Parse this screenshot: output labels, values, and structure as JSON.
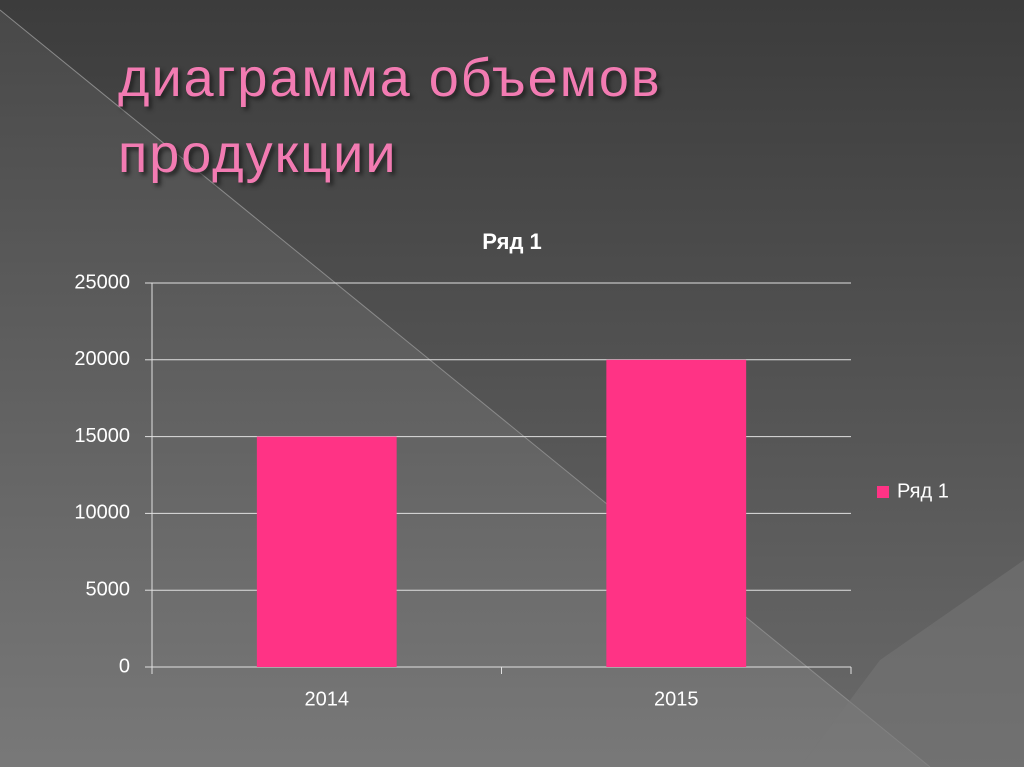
{
  "slide_title": "диаграмма объемов продукции",
  "chart_data": {
    "type": "bar",
    "title": "Ряд 1",
    "categories": [
      "2014",
      "2015"
    ],
    "series": [
      {
        "name": "Ряд 1",
        "color": "#ff3385",
        "values": [
          15000,
          20000
        ]
      }
    ],
    "ylim": [
      0,
      25000
    ],
    "yticks": [
      0,
      5000,
      10000,
      15000,
      20000,
      25000
    ],
    "grid": true,
    "legend": "right"
  }
}
